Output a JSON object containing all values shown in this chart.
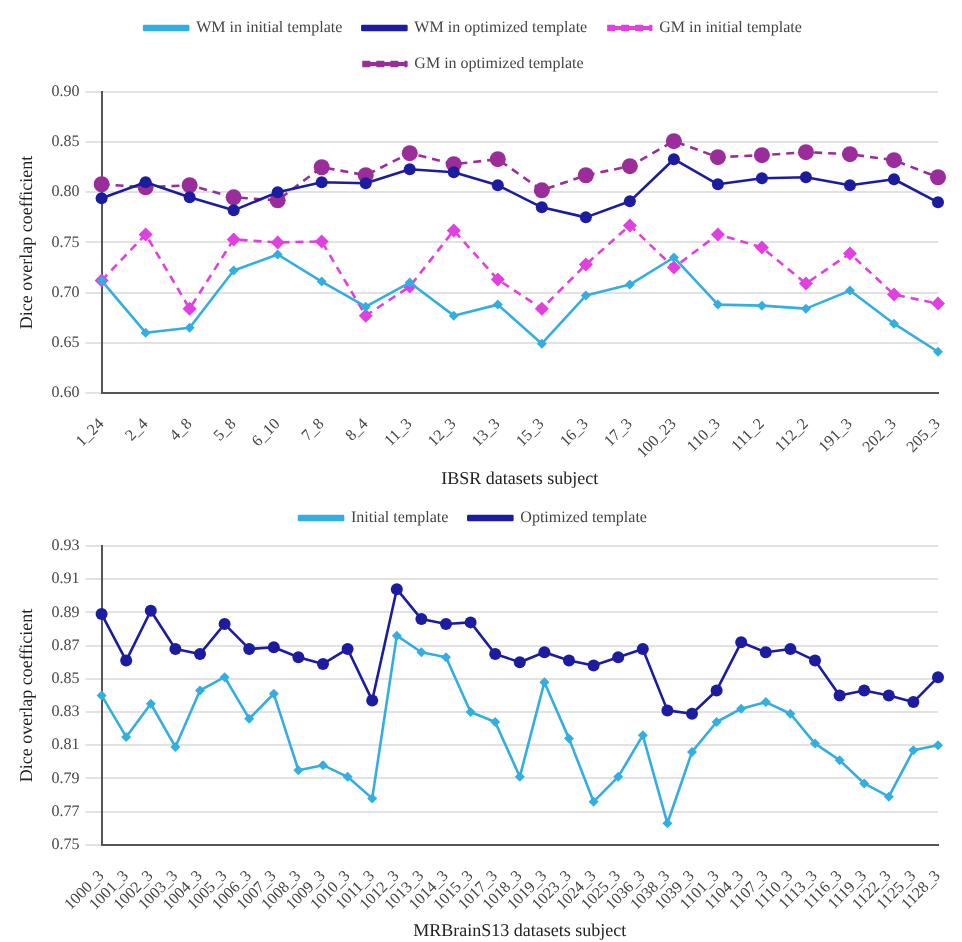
{
  "chart_data": [
    {
      "type": "line",
      "xlabel": "IBSR datasets subject",
      "ylabel": "Dice overlap coefficient",
      "legend": "top",
      "grid": "y",
      "categories": [
        "1_24",
        "2_4",
        "4_8",
        "5_8",
        "6_10",
        "7_8",
        "8_4",
        "11_3",
        "12_3",
        "13_3",
        "15_3",
        "16_3",
        "17_3",
        "100_23",
        "110_3",
        "111_2",
        "112_2",
        "191_3",
        "202_3",
        "205_3"
      ],
      "ylim": [
        0.6,
        0.9
      ],
      "yticks": [
        {
          "value": 0.6,
          "label": "0.60"
        },
        {
          "value": 0.65,
          "label": "0.65"
        },
        {
          "value": 0.7,
          "label": "0.70"
        },
        {
          "value": 0.75,
          "label": "0.75"
        },
        {
          "value": 0.8,
          "label": "0.80"
        },
        {
          "value": 0.85,
          "label": "0.85"
        },
        {
          "value": 0.9,
          "label": "0.90"
        }
      ],
      "series": [
        {
          "name": "WM in initial template",
          "color": "#33aee0",
          "marker": "diamond",
          "line_style": "solid",
          "values": [
            0.712,
            0.66,
            0.665,
            0.722,
            0.738,
            0.711,
            0.686,
            0.71,
            0.677,
            0.688,
            0.649,
            0.697,
            0.708,
            0.735,
            0.688,
            0.687,
            0.684,
            0.702,
            0.669,
            0.641
          ]
        },
        {
          "name": "WM in optimized template",
          "color": "#1c1ca0",
          "marker": "circle",
          "line_style": "solid",
          "values": [
            0.794,
            0.81,
            0.795,
            0.782,
            0.8,
            0.81,
            0.809,
            0.823,
            0.82,
            0.807,
            0.785,
            0.775,
            0.791,
            0.833,
            0.808,
            0.814,
            0.815,
            0.807,
            0.813,
            0.79
          ]
        },
        {
          "name": "GM in initial template",
          "color": "#e040e0",
          "marker": "diamond",
          "line_style": "dashed",
          "values": [
            0.712,
            0.758,
            0.684,
            0.753,
            0.75,
            0.751,
            0.677,
            0.706,
            0.762,
            0.713,
            0.684,
            0.728,
            0.767,
            0.725,
            0.758,
            0.745,
            0.709,
            0.739,
            0.698,
            0.689
          ]
        },
        {
          "name": "GM in optimized template",
          "color": "#9b2d9b",
          "marker": "circle",
          "line_style": "dashed",
          "values": [
            0.808,
            0.805,
            0.807,
            0.795,
            0.792,
            0.825,
            0.817,
            0.839,
            0.828,
            0.833,
            0.802,
            0.817,
            0.826,
            0.851,
            0.835,
            0.837,
            0.84,
            0.838,
            0.832,
            0.815
          ]
        }
      ]
    },
    {
      "type": "line",
      "xlabel": "MRBrainS13 datasets subject",
      "ylabel": "Dice overlap coefficient",
      "legend": "top",
      "grid": "y",
      "categories": [
        "1000_3",
        "1001_3",
        "1002_3",
        "1003_3",
        "1004_3",
        "1005_3",
        "1006_3",
        "1007_3",
        "1008_3",
        "1009_3",
        "1010_3",
        "1011_3",
        "1012_3",
        "1013_3",
        "1014_3",
        "1015_3",
        "1017_3",
        "1018_3",
        "1019_3",
        "1023_3",
        "1024_3",
        "1025_3",
        "1036_3",
        "1038_3",
        "1039_3",
        "1101_3",
        "1104_3",
        "1107_3",
        "1110_3",
        "1113_3",
        "1116_3",
        "1119_3",
        "1122_3",
        "1125_3",
        "1128_3"
      ],
      "ylim": [
        0.75,
        0.93
      ],
      "yticks": [
        0.75,
        0.77,
        0.79,
        0.81,
        0.83,
        0.85,
        0.87,
        0.89,
        0.91,
        0.93
      ],
      "series": [
        {
          "name": "Initial template",
          "color": "#33aee0",
          "marker": "diamond",
          "line_style": "solid",
          "values": [
            0.84,
            0.815,
            0.835,
            0.809,
            0.843,
            0.851,
            0.826,
            0.841,
            0.795,
            0.798,
            0.791,
            0.778,
            0.876,
            0.866,
            0.863,
            0.83,
            0.824,
            0.791,
            0.848,
            0.814,
            0.776,
            0.791,
            0.816,
            0.763,
            0.806,
            0.824,
            0.832,
            0.836,
            0.829,
            0.811,
            0.801,
            0.787,
            0.779,
            0.807,
            0.81
          ]
        },
        {
          "name": "Optimized template",
          "color": "#1c1ca0",
          "marker": "circle",
          "line_style": "solid",
          "values": [
            0.889,
            0.861,
            0.891,
            0.868,
            0.865,
            0.883,
            0.868,
            0.869,
            0.863,
            0.859,
            0.868,
            0.837,
            0.904,
            0.886,
            0.883,
            0.884,
            0.865,
            0.86,
            0.866,
            0.861,
            0.858,
            0.863,
            0.868,
            0.831,
            0.829,
            0.843,
            0.872,
            0.866,
            0.868,
            0.861,
            0.84,
            0.843,
            0.84,
            0.836,
            0.851
          ]
        }
      ]
    }
  ]
}
